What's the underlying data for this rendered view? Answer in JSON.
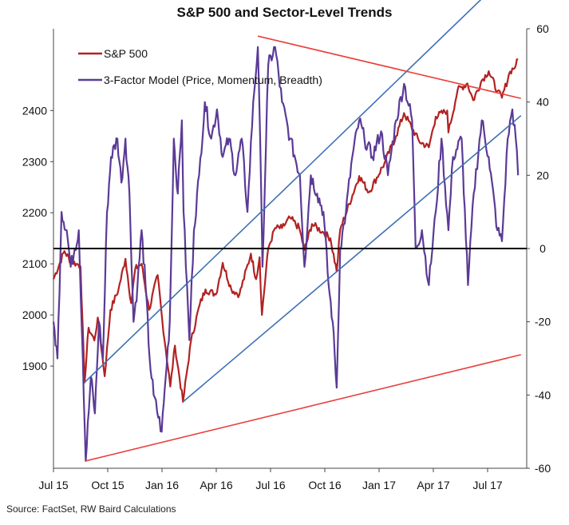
{
  "chart_data": {
    "type": "line",
    "title": "S&P 500 and Sector-Level Trends",
    "source": "Source: FactSet, RW Baird Calculations",
    "x_tick_labels": [
      "Jul 15",
      "Oct 15",
      "Jan 16",
      "Apr 16",
      "Jul 16",
      "Oct 16",
      "Jan 17",
      "Apr 17",
      "Jul 17"
    ],
    "x_range": [
      "2015-07-01",
      "2017-09-30"
    ],
    "left_axis": {
      "ticks": [
        1900,
        2000,
        2100,
        2200,
        2300,
        2400
      ],
      "range": [
        1700,
        2560
      ]
    },
    "right_axis": {
      "ticks": [
        60,
        40,
        20,
        0,
        -20,
        -40,
        -60
      ],
      "range": [
        -60,
        60
      ]
    },
    "legend": {
      "position": "top-left"
    },
    "colors": {
      "sp500": "#B22222",
      "model": "#5B3A96",
      "channel": "#3F6FB5",
      "trend": "#E8403C",
      "zero": "#000000"
    },
    "series": [
      {
        "name": "S&P 500",
        "axis": "left",
        "points": [
          [
            "2015-07-01",
            2070
          ],
          [
            "2015-07-20",
            2125
          ],
          [
            "2015-07-31",
            2105
          ],
          [
            "2015-08-10",
            2100
          ],
          [
            "2015-08-17",
            2095
          ],
          [
            "2015-08-24",
            1868
          ],
          [
            "2015-08-31",
            1975
          ],
          [
            "2015-09-10",
            1950
          ],
          [
            "2015-09-16",
            1995
          ],
          [
            "2015-09-28",
            1880
          ],
          [
            "2015-10-08",
            2010
          ],
          [
            "2015-10-22",
            2050
          ],
          [
            "2015-11-03",
            2110
          ],
          [
            "2015-11-13",
            2023
          ],
          [
            "2015-11-20",
            2090
          ],
          [
            "2015-12-01",
            2100
          ],
          [
            "2015-12-14",
            2010
          ],
          [
            "2015-12-29",
            2078
          ],
          [
            "2016-01-06",
            1990
          ],
          [
            "2016-01-20",
            1860
          ],
          [
            "2016-01-28",
            1940
          ],
          [
            "2016-02-11",
            1830
          ],
          [
            "2016-02-25",
            1950
          ],
          [
            "2016-03-11",
            2020
          ],
          [
            "2016-03-21",
            2050
          ],
          [
            "2016-04-08",
            2040
          ],
          [
            "2016-04-20",
            2102
          ],
          [
            "2016-05-05",
            2050
          ],
          [
            "2016-05-19",
            2040
          ],
          [
            "2016-06-08",
            2120
          ],
          [
            "2016-06-17",
            2070
          ],
          [
            "2016-06-23",
            2113
          ],
          [
            "2016-06-27",
            2000
          ],
          [
            "2016-07-08",
            2130
          ],
          [
            "2016-07-20",
            2170
          ],
          [
            "2016-08-01",
            2170
          ],
          [
            "2016-08-15",
            2190
          ],
          [
            "2016-08-31",
            2170
          ],
          [
            "2016-09-09",
            2127
          ],
          [
            "2016-09-22",
            2178
          ],
          [
            "2016-10-10",
            2163
          ],
          [
            "2016-10-24",
            2150
          ],
          [
            "2016-11-04",
            2085
          ],
          [
            "2016-11-10",
            2167
          ],
          [
            "2016-12-13",
            2272
          ],
          [
            "2016-12-30",
            2240
          ],
          [
            "2017-01-26",
            2297
          ],
          [
            "2017-02-15",
            2350
          ],
          [
            "2017-03-01",
            2395
          ],
          [
            "2017-03-27",
            2340
          ],
          [
            "2017-04-13",
            2328
          ],
          [
            "2017-04-25",
            2388
          ],
          [
            "2017-05-15",
            2400
          ],
          [
            "2017-05-17",
            2357
          ],
          [
            "2017-06-02",
            2440
          ],
          [
            "2017-06-19",
            2453
          ],
          [
            "2017-06-29",
            2420
          ],
          [
            "2017-07-14",
            2459
          ],
          [
            "2017-07-26",
            2477
          ],
          [
            "2017-08-10",
            2438
          ],
          [
            "2017-08-18",
            2425
          ],
          [
            "2017-09-01",
            2476
          ],
          [
            "2017-09-11",
            2488
          ],
          [
            "2017-09-15",
            2500
          ]
        ]
      },
      {
        "name": "3-Factor Model (Price, Momentum, Breadth)",
        "axis": "right",
        "points": [
          [
            "2015-07-01",
            -20
          ],
          [
            "2015-07-08",
            -30
          ],
          [
            "2015-07-15",
            10
          ],
          [
            "2015-07-24",
            5
          ],
          [
            "2015-07-31",
            -5
          ],
          [
            "2015-08-07",
            0
          ],
          [
            "2015-08-14",
            5
          ],
          [
            "2015-08-21",
            -30
          ],
          [
            "2015-08-26",
            -58
          ],
          [
            "2015-09-04",
            -35
          ],
          [
            "2015-09-11",
            -45
          ],
          [
            "2015-09-18",
            -20
          ],
          [
            "2015-09-25",
            -30
          ],
          [
            "2015-10-02",
            10
          ],
          [
            "2015-10-09",
            25
          ],
          [
            "2015-10-20",
            30
          ],
          [
            "2015-10-27",
            18
          ],
          [
            "2015-11-03",
            30
          ],
          [
            "2015-11-10",
            15
          ],
          [
            "2015-11-17",
            -20
          ],
          [
            "2015-11-24",
            -10
          ],
          [
            "2015-12-01",
            5
          ],
          [
            "2015-12-08",
            -10
          ],
          [
            "2015-12-15",
            -30
          ],
          [
            "2015-12-22",
            -40
          ],
          [
            "2016-01-05",
            -50
          ],
          [
            "2016-01-12",
            -35
          ],
          [
            "2016-01-19",
            -20
          ],
          [
            "2016-01-26",
            30
          ],
          [
            "2016-02-02",
            15
          ],
          [
            "2016-02-09",
            35
          ],
          [
            "2016-02-12",
            10
          ],
          [
            "2016-02-22",
            -25
          ],
          [
            "2016-03-01",
            5
          ],
          [
            "2016-03-10",
            20
          ],
          [
            "2016-03-20",
            40
          ],
          [
            "2016-03-31",
            30
          ],
          [
            "2016-04-10",
            38
          ],
          [
            "2016-04-20",
            25
          ],
          [
            "2016-05-01",
            30
          ],
          [
            "2016-05-12",
            20
          ],
          [
            "2016-05-23",
            30
          ],
          [
            "2016-06-02",
            10
          ],
          [
            "2016-06-12",
            40
          ],
          [
            "2016-06-20",
            55
          ],
          [
            "2016-06-24",
            30
          ],
          [
            "2016-06-28",
            -5
          ],
          [
            "2016-07-08",
            50
          ],
          [
            "2016-07-20",
            55
          ],
          [
            "2016-08-01",
            40
          ],
          [
            "2016-08-15",
            30
          ],
          [
            "2016-09-01",
            20
          ],
          [
            "2016-09-09",
            -5
          ],
          [
            "2016-09-20",
            20
          ],
          [
            "2016-10-01",
            15
          ],
          [
            "2016-10-12",
            10
          ],
          [
            "2016-10-21",
            -10
          ],
          [
            "2016-10-28",
            -20
          ],
          [
            "2016-11-04",
            -38
          ],
          [
            "2016-11-10",
            0
          ],
          [
            "2016-11-20",
            10
          ],
          [
            "2016-12-01",
            25
          ],
          [
            "2016-12-13",
            35
          ],
          [
            "2016-12-22",
            30
          ],
          [
            "2017-01-05",
            25
          ],
          [
            "2017-01-20",
            32
          ],
          [
            "2017-02-01",
            20
          ],
          [
            "2017-02-15",
            35
          ],
          [
            "2017-03-01",
            45
          ],
          [
            "2017-03-15",
            35
          ],
          [
            "2017-03-21",
            0
          ],
          [
            "2017-04-01",
            5
          ],
          [
            "2017-04-13",
            -10
          ],
          [
            "2017-04-25",
            10
          ],
          [
            "2017-05-05",
            30
          ],
          [
            "2017-05-17",
            5
          ],
          [
            "2017-05-25",
            25
          ],
          [
            "2017-06-09",
            30
          ],
          [
            "2017-06-20",
            -10
          ],
          [
            "2017-06-30",
            15
          ],
          [
            "2017-07-14",
            35
          ],
          [
            "2017-07-26",
            25
          ],
          [
            "2017-08-10",
            5
          ],
          [
            "2017-08-18",
            2
          ],
          [
            "2017-08-28",
            30
          ],
          [
            "2017-09-05",
            38
          ],
          [
            "2017-09-11",
            30
          ],
          [
            "2017-09-15",
            20
          ]
        ]
      }
    ],
    "overlays": [
      {
        "kind": "upper-channel",
        "axis": "left",
        "from": [
          "2015-08-24",
          1868
        ],
        "to": [
          "2017-08-20",
          2659
        ]
      },
      {
        "kind": "lower-channel",
        "axis": "left",
        "from": [
          "2016-02-11",
          1830
        ],
        "to": [
          "2017-09-20",
          2390
        ]
      },
      {
        "kind": "upper-trend",
        "axis": "right",
        "from": [
          "2016-06-20",
          58
        ],
        "to": [
          "2017-09-20",
          41
        ]
      },
      {
        "kind": "lower-trend",
        "axis": "right",
        "from": [
          "2015-08-26",
          -58
        ],
        "to": [
          "2017-09-20",
          -29
        ]
      },
      {
        "kind": "zero-line",
        "axis": "right",
        "from": [
          "2015-07-01",
          0
        ],
        "to": [
          "2017-09-30",
          0
        ]
      }
    ]
  }
}
